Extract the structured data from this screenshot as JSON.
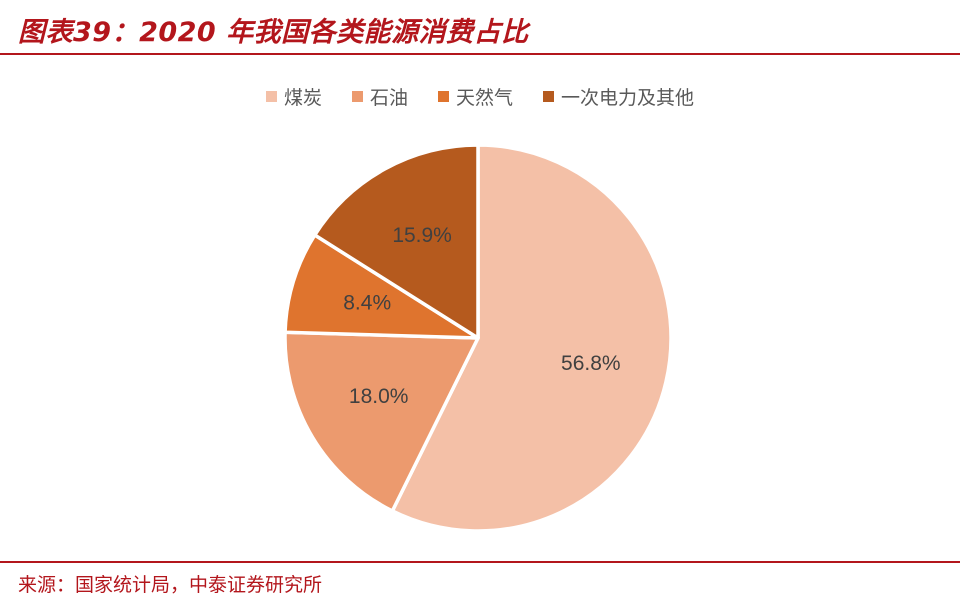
{
  "header": {
    "title": "图表39：2020 年我国各类能源消费占比"
  },
  "source": {
    "text": "来源：国家统计局，中泰证券研究所"
  },
  "colors": {
    "accent": "#b3161c"
  },
  "chart_data": {
    "type": "pie",
    "categories": [
      "煤炭",
      "石油",
      "天然气",
      "一次电力及其他"
    ],
    "values": [
      56.8,
      18.0,
      8.4,
      15.9
    ],
    "data_labels": [
      "56.8%",
      "18.0%",
      "8.4%",
      "15.9%"
    ],
    "colors": [
      "#f4c0a7",
      "#ec9a6e",
      "#df742e",
      "#b55a1e"
    ],
    "start_angle_deg": 0,
    "direction": "clockwise",
    "legend_position": "top"
  }
}
